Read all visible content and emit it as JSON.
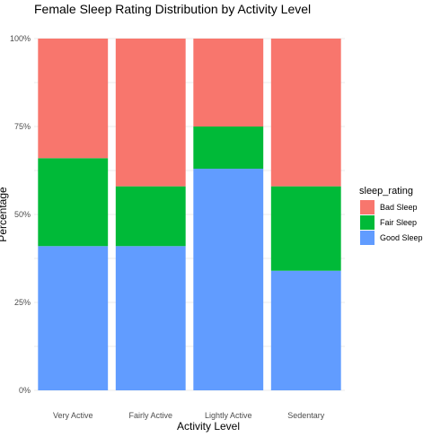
{
  "chart_data": {
    "type": "bar",
    "stacked": true,
    "title": "Female Sleep Rating Distribution by Activity Level",
    "xlabel": "Activity Level",
    "ylabel": "Percentage",
    "categories": [
      "Very Active",
      "Fairly Active",
      "Lightly Active",
      "Sedentary"
    ],
    "ylim": [
      0,
      100
    ],
    "yticks": [
      0,
      25,
      50,
      75,
      100
    ],
    "ytick_labels": [
      "0%",
      "25%",
      "50%",
      "75%",
      "100%"
    ],
    "grid": true,
    "legend": {
      "title": "sleep_rating",
      "placement": "right"
    },
    "series": [
      {
        "name": "Good Sleep",
        "color": "#619CFF",
        "values": [
          41,
          41,
          63,
          34
        ]
      },
      {
        "name": "Fair Sleep",
        "color": "#00BA38",
        "values": [
          25,
          17,
          12,
          24
        ]
      },
      {
        "name": "Bad Sleep",
        "color": "#F8766D",
        "values": [
          34,
          42,
          25,
          42
        ]
      }
    ],
    "legend_order": [
      "Bad Sleep",
      "Fair Sleep",
      "Good Sleep"
    ]
  }
}
